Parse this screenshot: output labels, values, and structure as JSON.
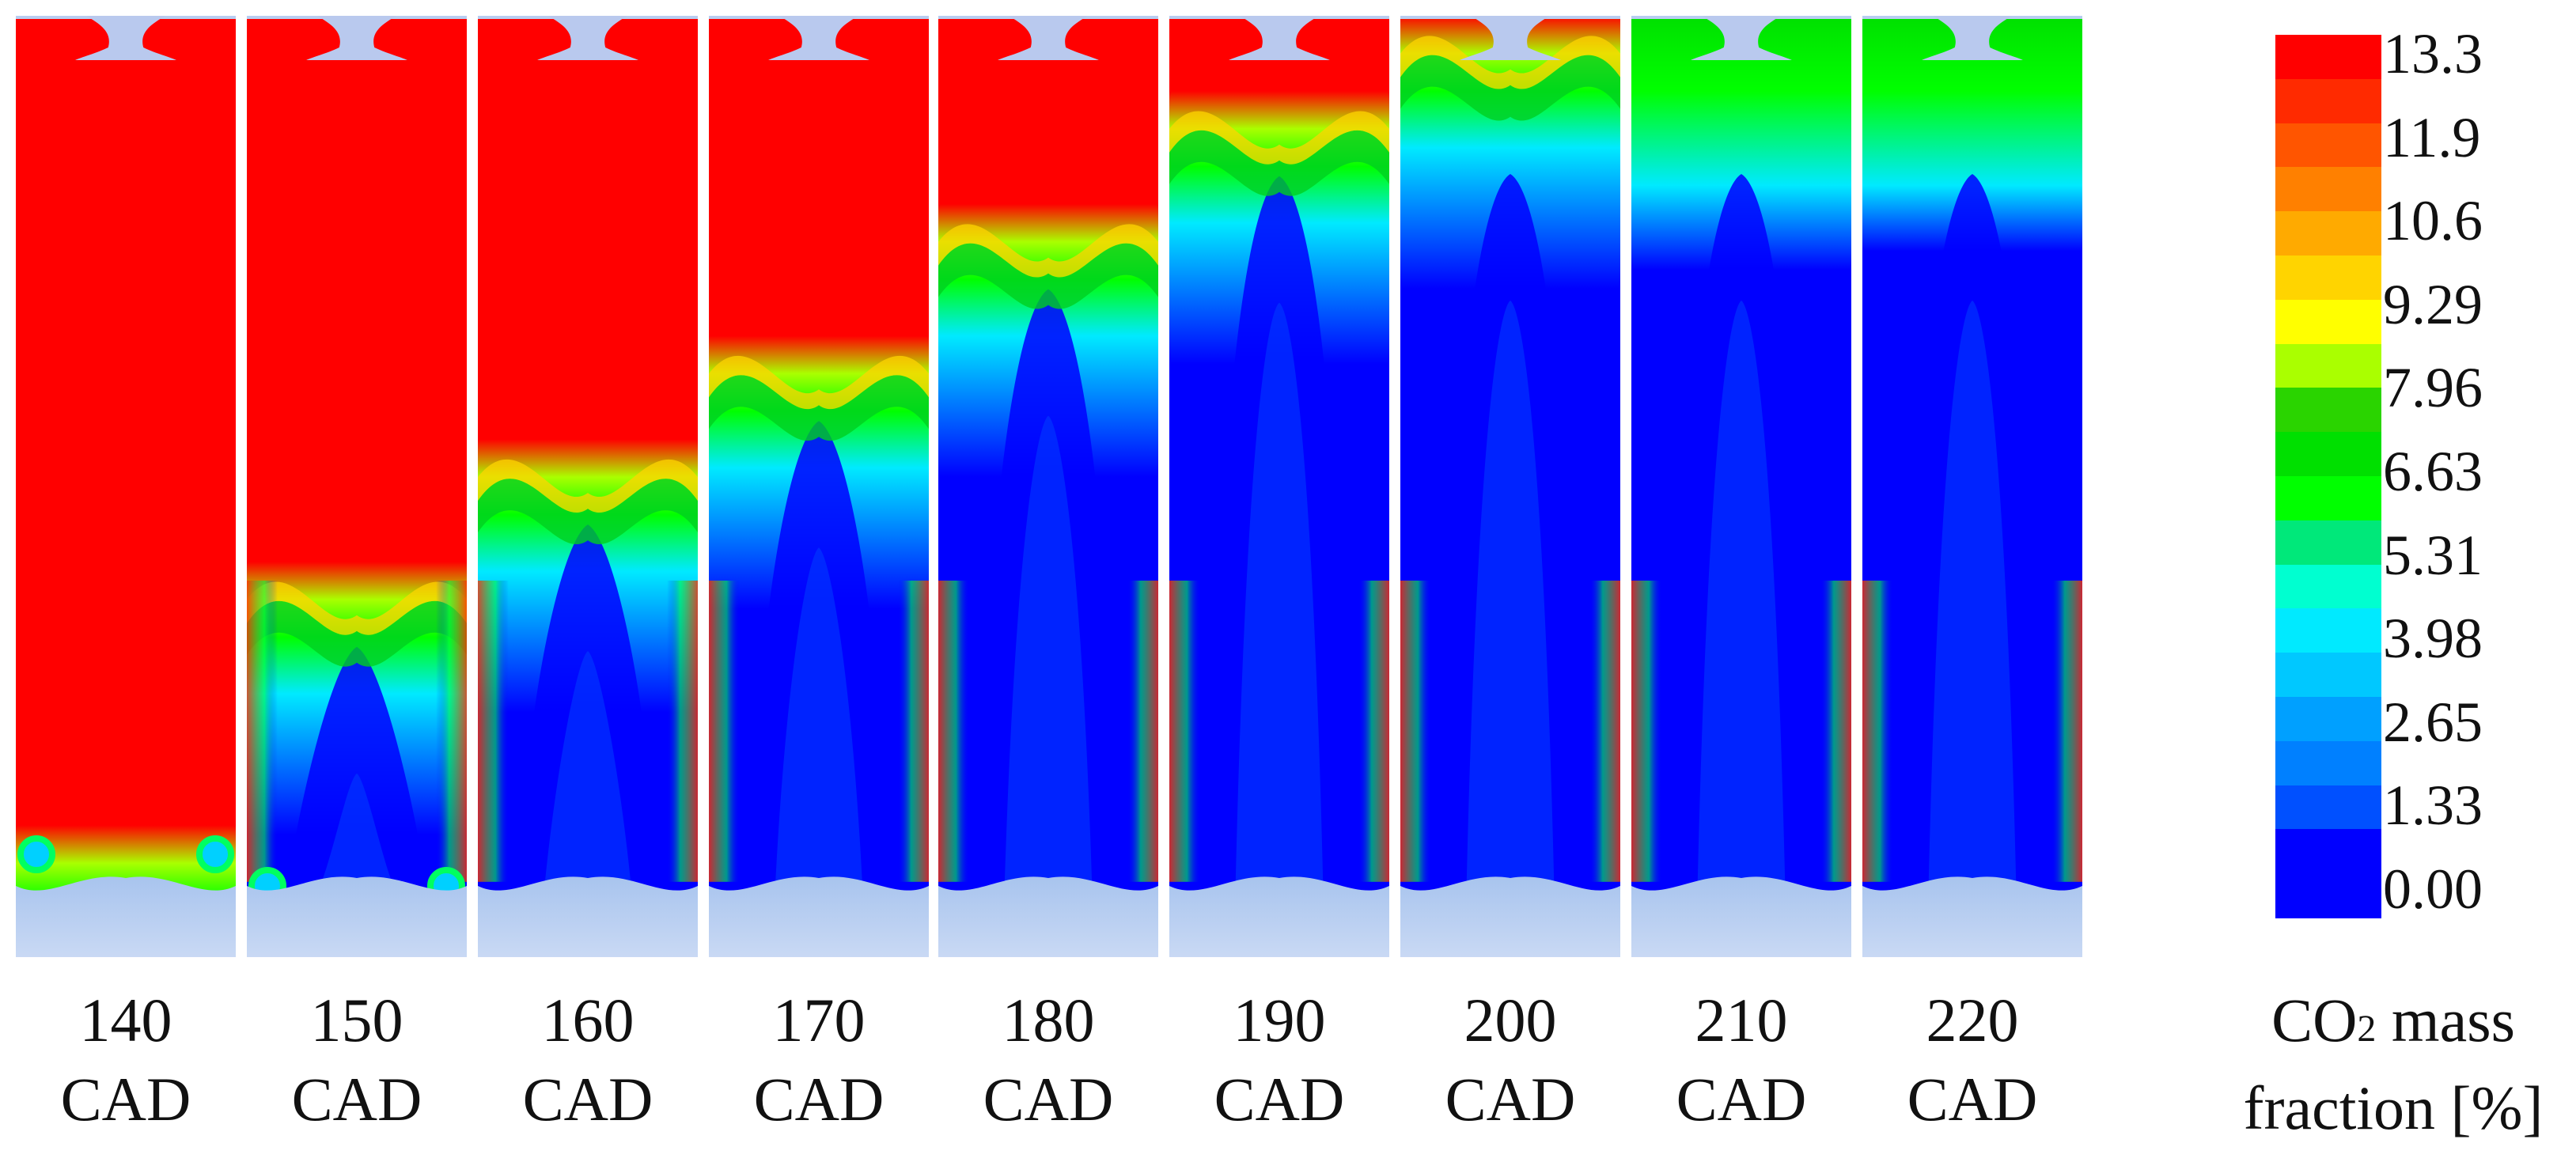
{
  "figure": {
    "panels": [
      {
        "cad": "140",
        "unit": "CAD",
        "front": 0.9,
        "depth": 0.0,
        "rot": 0.9
      },
      {
        "cad": "150",
        "unit": "CAD",
        "front": 0.62,
        "depth": 0.35,
        "rot": 0.9
      },
      {
        "cad": "160",
        "unit": "CAD",
        "front": 0.49,
        "depth": 0.55,
        "rot": 0.7
      },
      {
        "cad": "170",
        "unit": "CAD",
        "front": 0.38,
        "depth": 0.65,
        "rot": 0.6
      },
      {
        "cad": "180",
        "unit": "CAD",
        "front": 0.24,
        "depth": 0.75,
        "rot": 0.55
      },
      {
        "cad": "190",
        "unit": "CAD",
        "front": 0.12,
        "depth": 0.82,
        "rot": 0.5
      },
      {
        "cad": "200",
        "unit": "CAD",
        "front": 0.04,
        "depth": 0.86,
        "rot": 0.45
      },
      {
        "cad": "210",
        "unit": "CAD",
        "front": 0.02,
        "depth": 0.88,
        "rot": 0.45
      },
      {
        "cad": "220",
        "unit": "CAD",
        "front": 0.0,
        "depth": 0.9,
        "rot": 0.4
      }
    ]
  },
  "legend": {
    "title_pre": "CO",
    "title_sub": "2",
    "title_post": " mass",
    "title_line2": "fraction [%]",
    "ticks": [
      "13.3",
      "11.9",
      "10.6",
      "9.29",
      "7.96",
      "6.63",
      "5.31",
      "3.98",
      "2.65",
      "1.33",
      "0.00"
    ],
    "colors": [
      "#ff0000",
      "#ff2a00",
      "#ff5500",
      "#ff8000",
      "#ffaa00",
      "#ffd400",
      "#ffff00",
      "#aaff00",
      "#2ad400",
      "#00e000",
      "#00ff00",
      "#00e87a",
      "#00ffd0",
      "#00eaff",
      "#00c8ff",
      "#00a0ff",
      "#0080ff",
      "#0050ff",
      "#0000ff",
      "#0000ff"
    ]
  }
}
